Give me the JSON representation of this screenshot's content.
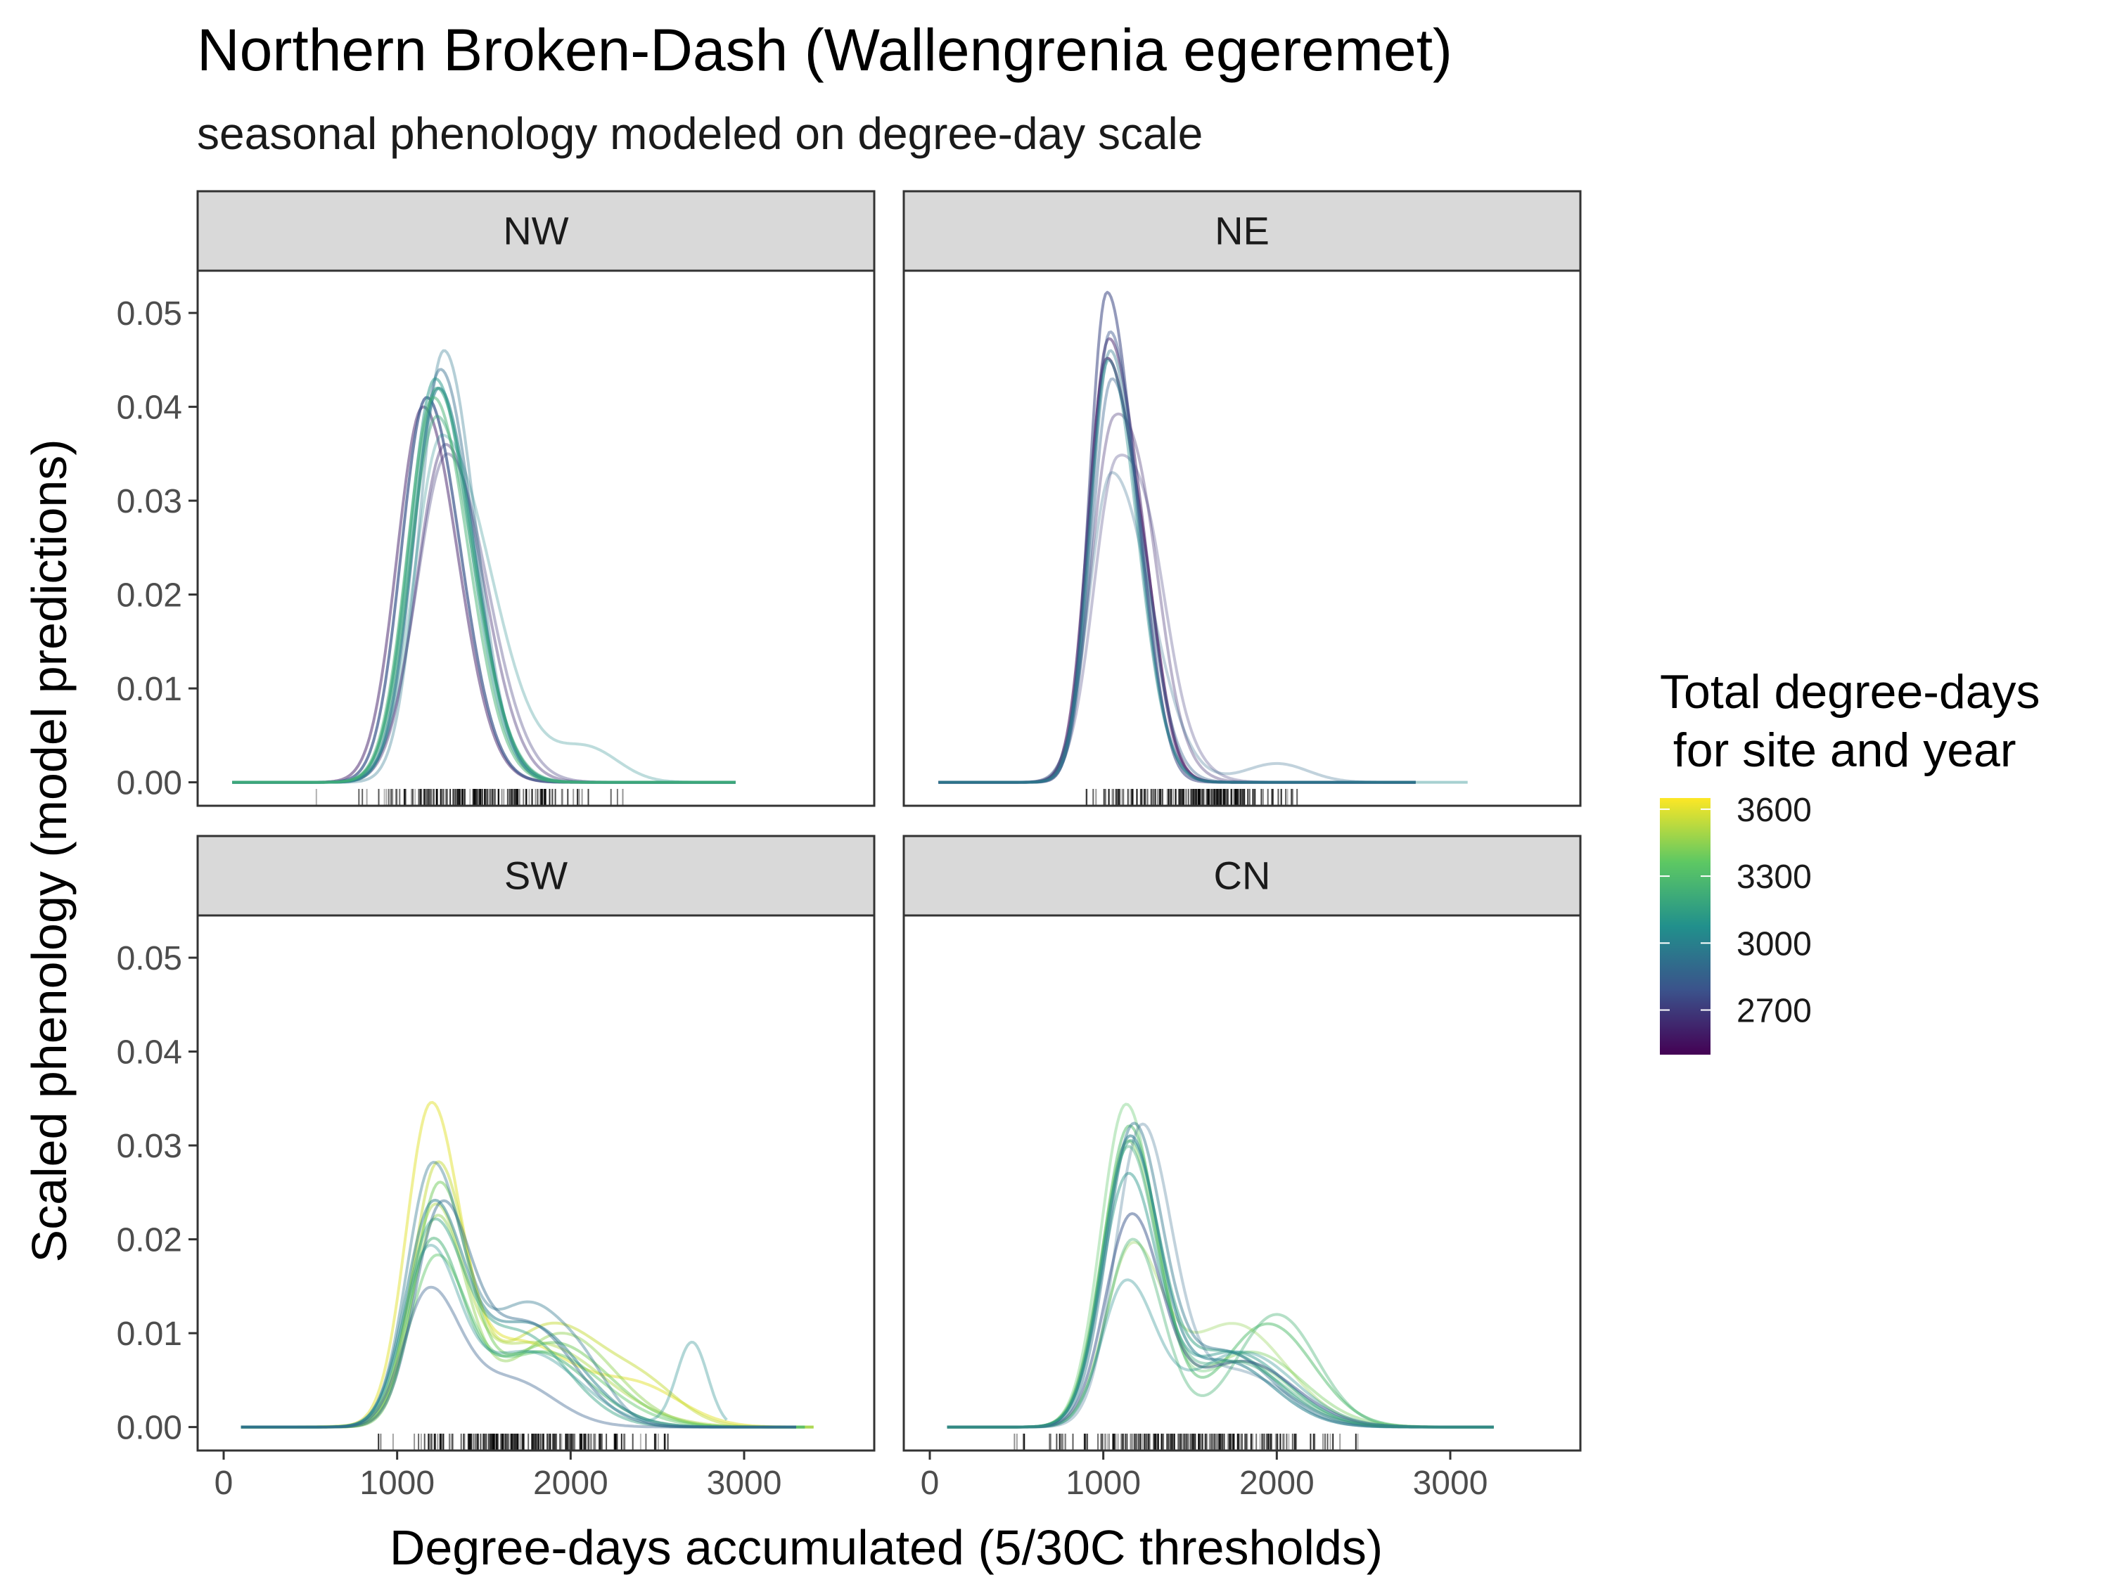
{
  "chart_data": {
    "type": "line",
    "title": "Northern Broken-Dash (Wallengrenia egeremet)",
    "subtitle": "seasonal phenology modeled on degree-day scale",
    "xlabel": "Degree-days accumulated (5/30C thresholds)",
    "ylabel": "Scaled phenology (model predictions)",
    "xlim": [
      -150,
      3750
    ],
    "ylim": [
      -0.0025,
      0.0545
    ],
    "x_ticks": [
      0,
      1000,
      2000,
      3000
    ],
    "y_ticks": [
      0.0,
      0.01,
      0.02,
      0.03,
      0.04,
      0.05
    ],
    "x_tick_labels": [
      "0",
      "1000",
      "2000",
      "3000"
    ],
    "y_tick_labels": [
      "0.00",
      "0.01",
      "0.02",
      "0.03",
      "0.04",
      "0.05"
    ],
    "grid": false,
    "legend": {
      "title_line1": "Total degree-days",
      "title_line2": " for site and year",
      "position": "right",
      "palette": [
        "#440154",
        "#3b528b",
        "#21908c",
        "#5dc863",
        "#fde725"
      ],
      "range": [
        2500,
        3650
      ],
      "breaks": [
        2700,
        3000,
        3300,
        3600
      ],
      "break_labels": [
        "2700",
        "3000",
        "3300",
        "3600"
      ]
    },
    "panels": [
      {
        "name": "NW",
        "series": [
          {
            "total_dd": 2600,
            "opacity": 0.5,
            "peak_x": 1150,
            "peak_y": 0.04,
            "sd_left": 150,
            "sd_right": 200,
            "x_start": 50,
            "x_end": 2950,
            "bumps": [],
            "rug_alpha": 0.6
          },
          {
            "total_dd": 2650,
            "opacity": 0.4,
            "peak_x": 1280,
            "peak_y": 0.036,
            "sd_left": 165,
            "sd_right": 215,
            "x_start": 50,
            "x_end": 2950,
            "bumps": []
          },
          {
            "total_dd": 2700,
            "opacity": 0.35,
            "peak_x": 1290,
            "peak_y": 0.035,
            "sd_left": 175,
            "sd_right": 230,
            "x_start": 50,
            "x_end": 2950,
            "bumps": []
          },
          {
            "total_dd": 2800,
            "opacity": 0.7,
            "peak_x": 1170,
            "peak_y": 0.041,
            "sd_left": 145,
            "sd_right": 195,
            "x_start": 50,
            "x_end": 2950,
            "bumps": []
          },
          {
            "total_dd": 2900,
            "opacity": 0.45,
            "peak_x": 1250,
            "peak_y": 0.044,
            "sd_left": 150,
            "sd_right": 190,
            "x_start": 50,
            "x_end": 2950,
            "bumps": []
          },
          {
            "total_dd": 2950,
            "opacity": 0.35,
            "peak_x": 1270,
            "peak_y": 0.046,
            "sd_left": 140,
            "sd_right": 180,
            "x_start": 50,
            "x_end": 2950,
            "bumps": []
          },
          {
            "total_dd": 3000,
            "opacity": 0.6,
            "peak_x": 1240,
            "peak_y": 0.042,
            "sd_left": 150,
            "sd_right": 200,
            "x_start": 50,
            "x_end": 2950,
            "bumps": []
          },
          {
            "total_dd": 3050,
            "opacity": 0.3,
            "peak_x": 1260,
            "peak_y": 0.037,
            "sd_left": 160,
            "sd_right": 280,
            "x_start": 50,
            "x_end": 2950,
            "bumps": [
              {
                "x": 2100,
                "y": 0.0035,
                "sd": 180
              }
            ]
          },
          {
            "total_dd": 3100,
            "opacity": 0.5,
            "peak_x": 1220,
            "peak_y": 0.043,
            "sd_left": 150,
            "sd_right": 200,
            "x_start": 50,
            "x_end": 2950,
            "bumps": []
          },
          {
            "total_dd": 3150,
            "opacity": 0.55,
            "peak_x": 1230,
            "peak_y": 0.042,
            "sd_left": 155,
            "sd_right": 205,
            "x_start": 50,
            "x_end": 2950,
            "bumps": []
          },
          {
            "total_dd": 3200,
            "opacity": 0.45,
            "peak_x": 1230,
            "peak_y": 0.039,
            "sd_left": 155,
            "sd_right": 210,
            "x_start": 50,
            "x_end": 2950,
            "bumps": []
          },
          {
            "total_dd": 3250,
            "opacity": 0.5,
            "peak_x": 1210,
            "peak_y": 0.041,
            "sd_left": 150,
            "sd_right": 200,
            "x_start": 50,
            "x_end": 2950,
            "bumps": []
          }
        ],
        "rug_range": [
          450,
          2400
        ],
        "rug_count": 150,
        "rug_seed": 11
      },
      {
        "name": "NE",
        "series": [
          {
            "total_dd": 2550,
            "opacity": 0.6,
            "peak_x": 1020,
            "peak_y": 0.045,
            "sd_left": 110,
            "sd_right": 170,
            "x_start": 50,
            "x_end": 2800,
            "bumps": [
              {
                "x": 1260,
                "y": 0.006,
                "sd": 90
              }
            ]
          },
          {
            "total_dd": 2600,
            "opacity": 0.5,
            "peak_x": 1030,
            "peak_y": 0.047,
            "sd_left": 110,
            "sd_right": 165,
            "x_start": 50,
            "x_end": 2800,
            "bumps": [
              {
                "x": 1250,
                "y": 0.005,
                "sd": 90
              }
            ]
          },
          {
            "total_dd": 2650,
            "opacity": 0.35,
            "peak_x": 1060,
            "peak_y": 0.038,
            "sd_left": 130,
            "sd_right": 200,
            "x_start": 50,
            "x_end": 2800,
            "bumps": [
              {
                "x": 1250,
                "y": 0.006,
                "sd": 100
              }
            ]
          },
          {
            "total_dd": 2700,
            "opacity": 0.3,
            "peak_x": 1080,
            "peak_y": 0.034,
            "sd_left": 135,
            "sd_right": 220,
            "x_start": 50,
            "x_end": 2800,
            "bumps": [
              {
                "x": 1280,
                "y": 0.005,
                "sd": 100
              }
            ]
          },
          {
            "total_dd": 2750,
            "opacity": 0.55,
            "peak_x": 1020,
            "peak_y": 0.052,
            "sd_left": 100,
            "sd_right": 150,
            "x_start": 50,
            "x_end": 2800,
            "bumps": [
              {
                "x": 1250,
                "y": 0.005,
                "sd": 90
              }
            ]
          },
          {
            "total_dd": 2800,
            "opacity": 0.45,
            "peak_x": 1040,
            "peak_y": 0.048,
            "sd_left": 110,
            "sd_right": 160,
            "x_start": 50,
            "x_end": 2800,
            "bumps": []
          },
          {
            "total_dd": 2850,
            "opacity": 0.4,
            "peak_x": 1050,
            "peak_y": 0.043,
            "sd_left": 115,
            "sd_right": 175,
            "x_start": 50,
            "x_end": 2800,
            "bumps": []
          },
          {
            "total_dd": 2900,
            "opacity": 0.3,
            "peak_x": 1050,
            "peak_y": 0.033,
            "sd_left": 130,
            "sd_right": 220,
            "x_start": 50,
            "x_end": 2800,
            "bumps": [
              {
                "x": 2000,
                "y": 0.002,
                "sd": 180
              }
            ]
          },
          {
            "total_dd": 2950,
            "opacity": 0.4,
            "peak_x": 1040,
            "peak_y": 0.046,
            "sd_left": 110,
            "sd_right": 160,
            "x_start": 50,
            "x_end": 2800,
            "bumps": []
          },
          {
            "total_dd": 3050,
            "opacity": 0.4,
            "peak_x": 1030,
            "peak_y": 0.045,
            "sd_left": 110,
            "sd_right": 165,
            "x_start": 50,
            "x_end": 3100,
            "bumps": []
          }
        ],
        "rug_range": [
          750,
          2300
        ],
        "rug_count": 170,
        "rug_seed": 29
      },
      {
        "name": "SW",
        "series": [
          {
            "total_dd": 3600,
            "opacity": 0.5,
            "peak_x": 1190,
            "peak_y": 0.032,
            "sd_left": 140,
            "sd_right": 160,
            "x_start": 100,
            "x_end": 3400,
            "bumps": [
              {
                "x": 1700,
                "y": 0.009,
                "sd": 320
              },
              {
                "x": 2400,
                "y": 0.004,
                "sd": 250
              }
            ]
          },
          {
            "total_dd": 3550,
            "opacity": 0.5,
            "peak_x": 1230,
            "peak_y": 0.027,
            "sd_left": 140,
            "sd_right": 165,
            "x_start": 100,
            "x_end": 3400,
            "bumps": [
              {
                "x": 1900,
                "y": 0.011,
                "sd": 320
              },
              {
                "x": 2450,
                "y": 0.003,
                "sd": 200
              }
            ]
          },
          {
            "total_dd": 3500,
            "opacity": 0.45,
            "peak_x": 1210,
            "peak_y": 0.021,
            "sd_left": 140,
            "sd_right": 165,
            "x_start": 100,
            "x_end": 3400,
            "bumps": [
              {
                "x": 1800,
                "y": 0.009,
                "sd": 380
              }
            ]
          },
          {
            "total_dd": 3450,
            "opacity": 0.45,
            "peak_x": 1230,
            "peak_y": 0.022,
            "sd_left": 145,
            "sd_right": 170,
            "x_start": 100,
            "x_end": 3400,
            "bumps": [
              {
                "x": 1950,
                "y": 0.01,
                "sd": 300
              }
            ]
          },
          {
            "total_dd": 3400,
            "opacity": 0.5,
            "peak_x": 1240,
            "peak_y": 0.025,
            "sd_left": 140,
            "sd_right": 165,
            "x_start": 100,
            "x_end": 3350,
            "bumps": [
              {
                "x": 1900,
                "y": 0.009,
                "sd": 320
              }
            ]
          },
          {
            "total_dd": 3350,
            "opacity": 0.45,
            "peak_x": 1220,
            "peak_y": 0.017,
            "sd_left": 150,
            "sd_right": 175,
            "x_start": 100,
            "x_end": 3350,
            "bumps": [
              {
                "x": 1850,
                "y": 0.008,
                "sd": 330
              }
            ]
          },
          {
            "total_dd": 3250,
            "opacity": 0.5,
            "peak_x": 1200,
            "peak_y": 0.019,
            "sd_left": 145,
            "sd_right": 170,
            "x_start": 100,
            "x_end": 3350,
            "bumps": [
              {
                "x": 1800,
                "y": 0.008,
                "sd": 300
              }
            ]
          },
          {
            "total_dd": 3150,
            "opacity": 0.45,
            "peak_x": 1200,
            "peak_y": 0.02,
            "sd_left": 150,
            "sd_right": 175,
            "x_start": 100,
            "x_end": 3300,
            "bumps": [
              {
                "x": 1700,
                "y": 0.01,
                "sd": 280
              }
            ]
          },
          {
            "total_dd": 3000,
            "opacity": 0.5,
            "peak_x": 1200,
            "peak_y": 0.022,
            "sd_left": 150,
            "sd_right": 175,
            "x_start": 100,
            "x_end": 3300,
            "bumps": [
              {
                "x": 1750,
                "y": 0.011,
                "sd": 300
              }
            ]
          },
          {
            "total_dd": 2950,
            "opacity": 0.4,
            "peak_x": 1200,
            "peak_y": 0.027,
            "sd_left": 145,
            "sd_right": 170,
            "x_start": 100,
            "x_end": 3300,
            "bumps": [
              {
                "x": 1750,
                "y": 0.013,
                "sd": 250
              },
              {
                "x": 2100,
                "y": 0.003,
                "sd": 150
              }
            ]
          },
          {
            "total_dd": 2900,
            "opacity": 0.45,
            "peak_x": 1250,
            "peak_y": 0.022,
            "sd_left": 150,
            "sd_right": 170,
            "x_start": 100,
            "x_end": 3300,
            "bumps": [
              {
                "x": 1750,
                "y": 0.011,
                "sd": 270
              }
            ]
          },
          {
            "total_dd": 3050,
            "opacity": 0.35,
            "peak_x": 1180,
            "peak_y": 0.018,
            "sd_left": 145,
            "sd_right": 170,
            "x_start": 100,
            "x_end": 2900,
            "bumps": [
              {
                "x": 1750,
                "y": 0.008,
                "sd": 300
              },
              {
                "x": 2700,
                "y": 0.009,
                "sd": 90
              }
            ]
          },
          {
            "total_dd": 2850,
            "opacity": 0.4,
            "peak_x": 1180,
            "peak_y": 0.014,
            "sd_left": 145,
            "sd_right": 175,
            "x_start": 100,
            "x_end": 3300,
            "bumps": [
              {
                "x": 1650,
                "y": 0.005,
                "sd": 250
              }
            ]
          }
        ],
        "rug_range": [
          650,
          2900
        ],
        "rug_count": 190,
        "rug_seed": 47
      },
      {
        "name": "CN",
        "series": [
          {
            "total_dd": 3300,
            "opacity": 0.5,
            "peak_x": 1150,
            "peak_y": 0.032,
            "sd_left": 150,
            "sd_right": 170,
            "x_start": 100,
            "x_end": 3250,
            "bumps": [
              {
                "x": 1950,
                "y": 0.011,
                "sd": 260
              }
            ]
          },
          {
            "total_dd": 3350,
            "opacity": 0.35,
            "peak_x": 1130,
            "peak_y": 0.034,
            "sd_left": 145,
            "sd_right": 165,
            "x_start": 100,
            "x_end": 3250,
            "bumps": [
              {
                "x": 1800,
                "y": 0.007,
                "sd": 280
              }
            ]
          },
          {
            "total_dd": 3400,
            "opacity": 0.4,
            "peak_x": 1140,
            "peak_y": 0.03,
            "sd_left": 150,
            "sd_right": 170,
            "x_start": 100,
            "x_end": 3250,
            "bumps": [
              {
                "x": 1850,
                "y": 0.008,
                "sd": 300
              }
            ]
          },
          {
            "total_dd": 3450,
            "opacity": 0.35,
            "peak_x": 1160,
            "peak_y": 0.018,
            "sd_left": 150,
            "sd_right": 170,
            "x_start": 100,
            "x_end": 3250,
            "bumps": [
              {
                "x": 1750,
                "y": 0.011,
                "sd": 300
              }
            ]
          },
          {
            "total_dd": 3250,
            "opacity": 0.4,
            "peak_x": 1170,
            "peak_y": 0.02,
            "sd_left": 150,
            "sd_right": 170,
            "x_start": 100,
            "x_end": 3250,
            "bumps": [
              {
                "x": 2000,
                "y": 0.012,
                "sd": 230
              }
            ]
          },
          {
            "total_dd": 3150,
            "opacity": 0.5,
            "peak_x": 1150,
            "peak_y": 0.029,
            "sd_left": 150,
            "sd_right": 165,
            "x_start": 100,
            "x_end": 3250,
            "bumps": [
              {
                "x": 1700,
                "y": 0.008,
                "sd": 300
              }
            ]
          },
          {
            "total_dd": 3100,
            "opacity": 0.45,
            "peak_x": 1140,
            "peak_y": 0.026,
            "sd_left": 150,
            "sd_right": 165,
            "x_start": 100,
            "x_end": 3250,
            "bumps": [
              {
                "x": 1750,
                "y": 0.008,
                "sd": 300
              }
            ]
          },
          {
            "total_dd": 3000,
            "opacity": 0.55,
            "peak_x": 1150,
            "peak_y": 0.03,
            "sd_left": 150,
            "sd_right": 165,
            "x_start": 100,
            "x_end": 3250,
            "bumps": [
              {
                "x": 1700,
                "y": 0.007,
                "sd": 280
              }
            ]
          },
          {
            "total_dd": 2950,
            "opacity": 0.45,
            "peak_x": 1170,
            "peak_y": 0.031,
            "sd_left": 150,
            "sd_right": 165,
            "x_start": 100,
            "x_end": 3250,
            "bumps": [
              {
                "x": 1700,
                "y": 0.008,
                "sd": 280
              }
            ]
          },
          {
            "total_dd": 2900,
            "opacity": 0.3,
            "peak_x": 1220,
            "peak_y": 0.031,
            "sd_left": 150,
            "sd_right": 170,
            "x_start": 100,
            "x_end": 3250,
            "bumps": [
              {
                "x": 1750,
                "y": 0.006,
                "sd": 300
              }
            ]
          },
          {
            "total_dd": 2800,
            "opacity": 0.5,
            "peak_x": 1160,
            "peak_y": 0.022,
            "sd_left": 150,
            "sd_right": 170,
            "x_start": 100,
            "x_end": 3250,
            "bumps": [
              {
                "x": 1800,
                "y": 0.007,
                "sd": 300
              }
            ]
          },
          {
            "total_dd": 3050,
            "opacity": 0.35,
            "peak_x": 1130,
            "peak_y": 0.015,
            "sd_left": 140,
            "sd_right": 165,
            "x_start": 100,
            "x_end": 3250,
            "bumps": [
              {
                "x": 1800,
                "y": 0.008,
                "sd": 300
              }
            ]
          },
          {
            "total_dd": 3200,
            "opacity": 0.4,
            "peak_x": 1140,
            "peak_y": 0.029,
            "sd_left": 150,
            "sd_right": 165,
            "x_start": 100,
            "x_end": 3250,
            "bumps": [
              {
                "x": 1750,
                "y": 0.007,
                "sd": 300
              }
            ]
          }
        ],
        "rug_range": [
          250,
          2750
        ],
        "rug_count": 190,
        "rug_seed": 83
      }
    ]
  }
}
